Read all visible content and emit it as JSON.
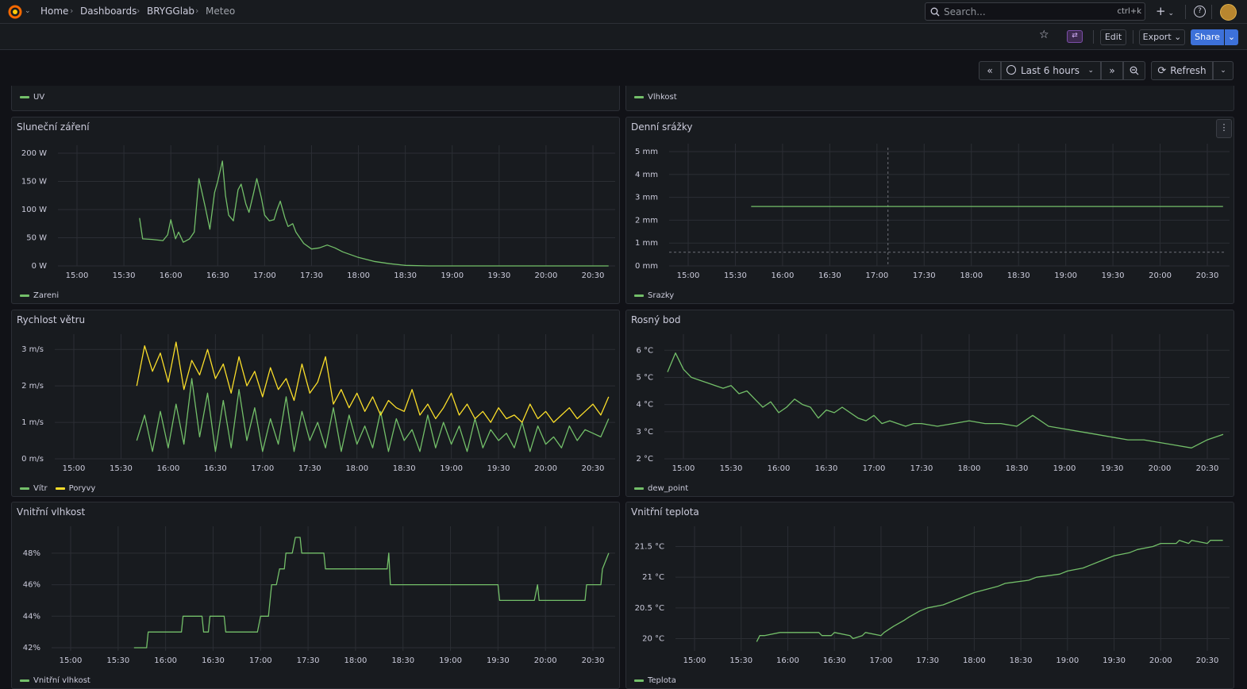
{
  "breadcrumbs": [
    "Home",
    "Dashboards",
    "BRYGGlab",
    "Meteo"
  ],
  "search": {
    "placeholder": "Search...",
    "shortcut": "ctrl+k"
  },
  "toolbar": {
    "edit": "Edit",
    "export": "Export",
    "share": "Share"
  },
  "time": {
    "range": "Last 6 hours",
    "refresh": "Refresh"
  },
  "top_row": {
    "uv_legend": "UV",
    "vlhkost_legend": "Vlhkost"
  },
  "colors": {
    "green": "#73bf69",
    "yellow": "#fade2a",
    "accent": "#3d71d9"
  },
  "panels": [
    {
      "title": "Sluneční záření"
    },
    {
      "title": "Denní srážky"
    },
    {
      "title": "Rychlost větru"
    },
    {
      "title": "Rosný bod"
    },
    {
      "title": "Vnitřní vlhkost"
    },
    {
      "title": "Vnitřní teplota"
    }
  ],
  "chart_data": [
    {
      "type": "line",
      "title": "Sluneční záření",
      "x_ticks": [
        "15:00",
        "15:30",
        "16:00",
        "16:30",
        "17:00",
        "17:30",
        "18:00",
        "18:30",
        "19:00",
        "19:30",
        "20:00",
        "20:30"
      ],
      "y_ticks": [
        "0 W",
        "50 W",
        "100 W",
        "150 W",
        "200 W"
      ],
      "ylim": [
        0,
        200
      ],
      "series": [
        {
          "name": "Zareni",
          "color": "#73bf69",
          "x": [
            "15:40",
            "15:42",
            "15:48",
            "15:55",
            "15:58",
            "16:00",
            "16:03",
            "16:05",
            "16:08",
            "16:12",
            "16:15",
            "16:18",
            "16:22",
            "16:25",
            "16:28",
            "16:30",
            "16:33",
            "16:35",
            "16:37",
            "16:40",
            "16:43",
            "16:45",
            "16:48",
            "16:50",
            "16:53",
            "16:55",
            "16:58",
            "17:00",
            "17:03",
            "17:06",
            "17:08",
            "17:10",
            "17:13",
            "17:15",
            "17:18",
            "17:20",
            "17:25",
            "17:30",
            "17:35",
            "17:40",
            "17:45",
            "17:50",
            "18:00",
            "18:10",
            "18:20",
            "18:30",
            "18:45",
            "19:00",
            "19:30",
            "20:00",
            "20:30",
            "20:40"
          ],
          "values": [
            85,
            48,
            47,
            45,
            55,
            82,
            48,
            60,
            42,
            48,
            60,
            155,
            105,
            65,
            130,
            150,
            186,
            125,
            90,
            80,
            135,
            145,
            110,
            95,
            130,
            155,
            120,
            90,
            80,
            82,
            100,
            115,
            85,
            70,
            75,
            60,
            40,
            30,
            32,
            37,
            32,
            25,
            15,
            8,
            4,
            1,
            0,
            0,
            0,
            0,
            0,
            0
          ]
        }
      ]
    },
    {
      "type": "line",
      "title": "Denní srážky",
      "x_ticks": [
        "15:00",
        "15:30",
        "16:00",
        "16:30",
        "17:00",
        "17:30",
        "18:00",
        "18:30",
        "19:00",
        "19:30",
        "20:00",
        "20:30"
      ],
      "y_ticks": [
        "0 mm",
        "1 mm",
        "2 mm",
        "3 mm",
        "4 mm",
        "5 mm"
      ],
      "ylim": [
        0,
        5
      ],
      "series": [
        {
          "name": "Srazky",
          "color": "#73bf69",
          "x": [
            "15:40",
            "20:40"
          ],
          "values": [
            2.6,
            2.6
          ]
        }
      ]
    },
    {
      "type": "line",
      "title": "Rychlost větru",
      "x_ticks": [
        "15:00",
        "15:30",
        "16:00",
        "16:30",
        "17:00",
        "17:30",
        "18:00",
        "18:30",
        "19:00",
        "19:30",
        "20:00",
        "20:30"
      ],
      "y_ticks": [
        "0 m/s",
        "1 m/s",
        "2 m/s",
        "3 m/s"
      ],
      "ylim": [
        0,
        3.2
      ],
      "series": [
        {
          "name": "Vítr",
          "color": "#73bf69",
          "x": [
            "15:40",
            "15:45",
            "15:50",
            "15:55",
            "16:00",
            "16:05",
            "16:10",
            "16:15",
            "16:20",
            "16:25",
            "16:30",
            "16:35",
            "16:40",
            "16:45",
            "16:50",
            "16:55",
            "17:00",
            "17:05",
            "17:10",
            "17:15",
            "17:20",
            "17:25",
            "17:30",
            "17:35",
            "17:40",
            "17:45",
            "17:50",
            "17:55",
            "18:00",
            "18:05",
            "18:10",
            "18:15",
            "18:20",
            "18:25",
            "18:30",
            "18:35",
            "18:40",
            "18:45",
            "18:50",
            "18:55",
            "19:00",
            "19:05",
            "19:10",
            "19:15",
            "19:20",
            "19:25",
            "19:30",
            "19:35",
            "19:40",
            "19:45",
            "19:50",
            "19:55",
            "20:00",
            "20:05",
            "20:10",
            "20:15",
            "20:20",
            "20:25",
            "20:30",
            "20:35",
            "20:40"
          ],
          "values": [
            0.5,
            1.2,
            0.2,
            1.3,
            0.3,
            1.5,
            0.4,
            2.2,
            0.6,
            1.8,
            0.2,
            1.6,
            0.3,
            1.9,
            0.5,
            1.4,
            0.2,
            1.1,
            0.4,
            1.7,
            0.2,
            1.3,
            0.5,
            1.0,
            0.3,
            1.4,
            0.2,
            1.2,
            0.4,
            0.9,
            0.3,
            1.3,
            0.2,
            1.1,
            0.5,
            0.8,
            0.2,
            1.2,
            0.3,
            1.0,
            0.4,
            0.9,
            0.2,
            1.1,
            0.3,
            0.8,
            0.5,
            0.7,
            0.3,
            1.0,
            0.2,
            0.9,
            0.4,
            0.6,
            0.3,
            0.9,
            0.5,
            0.8,
            0.7,
            0.6,
            1.1
          ]
        },
        {
          "name": "Poryvy",
          "color": "#fade2a",
          "x": [
            "15:40",
            "15:45",
            "15:50",
            "15:55",
            "16:00",
            "16:05",
            "16:10",
            "16:15",
            "16:20",
            "16:25",
            "16:30",
            "16:35",
            "16:40",
            "16:45",
            "16:50",
            "16:55",
            "17:00",
            "17:05",
            "17:10",
            "17:15",
            "17:20",
            "17:25",
            "17:30",
            "17:35",
            "17:40",
            "17:45",
            "17:50",
            "17:55",
            "18:00",
            "18:05",
            "18:10",
            "18:15",
            "18:20",
            "18:25",
            "18:30",
            "18:35",
            "18:40",
            "18:45",
            "18:50",
            "18:55",
            "19:00",
            "19:05",
            "19:10",
            "19:15",
            "19:20",
            "19:25",
            "19:30",
            "19:35",
            "19:40",
            "19:45",
            "19:50",
            "19:55",
            "20:00",
            "20:05",
            "20:10",
            "20:15",
            "20:20",
            "20:25",
            "20:30",
            "20:35",
            "20:40"
          ],
          "values": [
            2.0,
            3.1,
            2.4,
            2.9,
            2.1,
            3.2,
            1.9,
            2.7,
            2.3,
            3.0,
            2.2,
            2.6,
            1.8,
            2.8,
            2.0,
            2.4,
            1.7,
            2.5,
            1.9,
            2.2,
            1.6,
            2.6,
            1.8,
            2.1,
            2.8,
            1.5,
            1.9,
            1.4,
            1.8,
            1.3,
            1.7,
            1.2,
            1.6,
            1.4,
            1.3,
            1.9,
            1.2,
            1.5,
            1.1,
            1.4,
            1.8,
            1.2,
            1.5,
            1.1,
            1.3,
            1.0,
            1.4,
            1.1,
            1.2,
            1.0,
            1.5,
            1.1,
            1.3,
            1.0,
            1.2,
            1.4,
            1.1,
            1.3,
            1.5,
            1.2,
            1.7
          ]
        }
      ]
    },
    {
      "type": "line",
      "title": "Rosný bod",
      "x_ticks": [
        "15:00",
        "15:30",
        "16:00",
        "16:30",
        "17:00",
        "17:30",
        "18:00",
        "18:30",
        "19:00",
        "19:30",
        "20:00",
        "20:30"
      ],
      "y_ticks": [
        "2 °C",
        "3 °C",
        "4 °C",
        "5 °C",
        "6 °C"
      ],
      "ylim": [
        2,
        6.3
      ],
      "series": [
        {
          "name": "dew_point",
          "color": "#73bf69",
          "x": [
            "14:50",
            "14:55",
            "15:00",
            "15:05",
            "15:10",
            "15:15",
            "15:20",
            "15:25",
            "15:30",
            "15:35",
            "15:40",
            "15:45",
            "15:50",
            "15:55",
            "16:00",
            "16:05",
            "16:10",
            "16:15",
            "16:20",
            "16:25",
            "16:30",
            "16:35",
            "16:40",
            "16:45",
            "16:50",
            "16:55",
            "17:00",
            "17:05",
            "17:10",
            "17:15",
            "17:20",
            "17:25",
            "17:30",
            "17:40",
            "17:50",
            "18:00",
            "18:10",
            "18:20",
            "18:30",
            "18:40",
            "18:50",
            "19:00",
            "19:10",
            "19:20",
            "19:30",
            "19:40",
            "19:50",
            "20:00",
            "20:10",
            "20:20",
            "20:30",
            "20:40"
          ],
          "values": [
            5.2,
            5.9,
            5.3,
            5.0,
            4.9,
            4.8,
            4.7,
            4.6,
            4.7,
            4.4,
            4.5,
            4.2,
            3.9,
            4.1,
            3.7,
            3.9,
            4.2,
            4.0,
            3.9,
            3.5,
            3.8,
            3.7,
            3.9,
            3.7,
            3.5,
            3.4,
            3.6,
            3.3,
            3.4,
            3.3,
            3.2,
            3.3,
            3.3,
            3.2,
            3.3,
            3.4,
            3.3,
            3.3,
            3.2,
            3.6,
            3.2,
            3.1,
            3.0,
            2.9,
            2.8,
            2.7,
            2.7,
            2.6,
            2.5,
            2.4,
            2.7,
            2.9
          ]
        }
      ]
    },
    {
      "type": "line",
      "title": "Vnitřní vlhkost",
      "x_ticks": [
        "15:00",
        "15:30",
        "16:00",
        "16:30",
        "17:00",
        "17:30",
        "18:00",
        "18:30",
        "19:00",
        "19:30",
        "20:00",
        "20:30"
      ],
      "y_ticks": [
        "42%",
        "44%",
        "46%",
        "48%"
      ],
      "ylim": [
        41.8,
        49.2
      ],
      "series": [
        {
          "name": "Vnitřní vlhkost",
          "color": "#73bf69",
          "x": [
            "15:40",
            "15:48",
            "15:49",
            "16:05",
            "16:06",
            "16:10",
            "16:11",
            "16:20",
            "16:21",
            "16:23",
            "16:24",
            "16:27",
            "16:28",
            "16:37",
            "16:38",
            "16:48",
            "16:49",
            "16:58",
            "17:00",
            "17:05",
            "17:07",
            "17:10",
            "17:12",
            "17:15",
            "17:16",
            "17:20",
            "17:22",
            "17:25",
            "17:26",
            "17:35",
            "17:36",
            "17:40",
            "17:41",
            "18:10",
            "18:11",
            "18:20",
            "18:21",
            "18:22",
            "18:23",
            "18:30",
            "18:31",
            "19:00",
            "19:01",
            "19:30",
            "19:31",
            "19:52",
            "19:53",
            "19:55",
            "19:56",
            "20:10",
            "20:11",
            "20:25",
            "20:26",
            "20:35",
            "20:36",
            "20:40"
          ],
          "values": [
            42,
            42,
            43,
            43,
            43,
            43,
            44,
            44,
            44,
            44,
            43,
            43,
            44,
            44,
            43,
            43,
            43,
            43,
            44,
            44,
            46,
            46,
            47,
            47,
            48,
            48,
            49,
            49,
            48,
            48,
            48,
            48,
            47,
            47,
            47,
            47,
            48,
            46,
            46,
            46,
            46,
            46,
            46,
            46,
            45,
            45,
            45,
            46,
            45,
            45,
            45,
            45,
            46,
            46,
            47,
            48
          ]
        }
      ]
    },
    {
      "type": "line",
      "title": "Vnitřní teplota",
      "x_ticks": [
        "15:00",
        "15:30",
        "16:00",
        "16:30",
        "17:00",
        "17:30",
        "18:00",
        "18:30",
        "19:00",
        "19:30",
        "20:00",
        "20:30"
      ],
      "y_ticks": [
        "20 °C",
        "20.5 °C",
        "21 °C",
        "21.5 °C"
      ],
      "ylim": [
        19.8,
        21.7
      ],
      "series": [
        {
          "name": "Teplota",
          "color": "#73bf69",
          "x": [
            "15:40",
            "15:42",
            "15:45",
            "15:55",
            "15:57",
            "16:20",
            "16:22",
            "16:28",
            "16:30",
            "16:40",
            "16:42",
            "16:48",
            "16:50",
            "17:00",
            "17:02",
            "17:05",
            "17:08",
            "17:15",
            "17:18",
            "17:25",
            "17:30",
            "17:40",
            "17:45",
            "17:55",
            "18:00",
            "18:15",
            "18:20",
            "18:35",
            "18:40",
            "18:55",
            "19:00",
            "19:10",
            "19:15",
            "19:25",
            "19:30",
            "19:40",
            "19:45",
            "19:55",
            "20:00",
            "20:10",
            "20:12",
            "20:18",
            "20:20",
            "20:30",
            "20:32",
            "20:40"
          ],
          "values": [
            19.95,
            20.05,
            20.05,
            20.1,
            20.1,
            20.1,
            20.05,
            20.05,
            20.1,
            20.05,
            20.0,
            20.05,
            20.1,
            20.05,
            20.1,
            20.15,
            20.2,
            20.3,
            20.35,
            20.45,
            20.5,
            20.55,
            20.6,
            20.7,
            20.75,
            20.85,
            20.9,
            20.95,
            21.0,
            21.05,
            21.1,
            21.15,
            21.2,
            21.3,
            21.35,
            21.4,
            21.45,
            21.5,
            21.55,
            21.55,
            21.6,
            21.55,
            21.6,
            21.55,
            21.6,
            21.6
          ]
        }
      ]
    }
  ]
}
